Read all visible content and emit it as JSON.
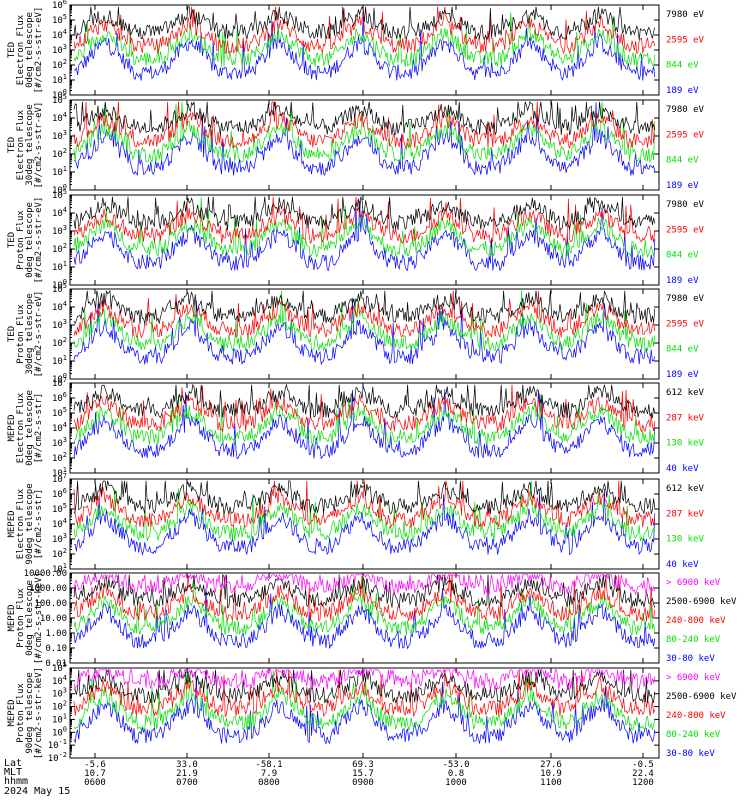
{
  "chart_data": {
    "type": "line",
    "date": "2024 May 15",
    "footer": {
      "labels": [
        "Lat",
        "MLT",
        "hhmm"
      ],
      "lat": [
        "-5.6",
        "33.0",
        "-58.1",
        "69.3",
        "-53.0",
        "27.6",
        "-0.5"
      ],
      "mlt": [
        "10.7",
        "21.9",
        "7.9",
        "15.7",
        "0.8",
        "10.9",
        "22.4"
      ],
      "hhmm": [
        "0600",
        "0700",
        "0800",
        "0900",
        "1000",
        "1100",
        "1200"
      ]
    },
    "colors": {
      "black": "#000000",
      "red": "#ff0000",
      "green": "#00e000",
      "blue": "#0000ff",
      "magenta": "#ff00ff"
    },
    "panels": [
      {
        "ylabel": [
          "TED",
          "Electron Flux",
          "0deg telescope",
          "[#/cm2-s-str-eV]"
        ],
        "ymin_exp": 0,
        "ymax_exp": 6,
        "tick_exps": [
          0,
          2,
          4,
          6
        ],
        "legend": [
          {
            "text": "7980 eV",
            "color": "black"
          },
          {
            "text": "2595 eV",
            "color": "red"
          },
          {
            "text": "844 eV",
            "color": "green"
          },
          {
            "text": "189 eV",
            "color": "blue"
          }
        ]
      },
      {
        "ylabel": [
          "TED",
          "Electron Flux",
          "30deg telescope",
          "[#/cm2-s-str-eV]"
        ],
        "ymin_exp": 0,
        "ymax_exp": 5,
        "tick_exps": [
          0,
          1,
          2,
          3,
          4,
          5
        ],
        "legend": [
          {
            "text": "7980 eV",
            "color": "black"
          },
          {
            "text": "2595 eV",
            "color": "red"
          },
          {
            "text": "844 eV",
            "color": "green"
          },
          {
            "text": "189 eV",
            "color": "blue"
          }
        ]
      },
      {
        "ylabel": [
          "TED",
          "Proton Flux",
          "0deg telescope",
          "[#/cm2-s-str-eV]"
        ],
        "ymin_exp": 0,
        "ymax_exp": 5,
        "tick_exps": [
          0,
          1,
          2,
          3,
          4,
          5
        ],
        "legend": [
          {
            "text": "7980 eV",
            "color": "black"
          },
          {
            "text": "2595 eV",
            "color": "red"
          },
          {
            "text": "844 eV",
            "color": "green"
          },
          {
            "text": "189 eV",
            "color": "blue"
          }
        ]
      },
      {
        "ylabel": [
          "TED",
          "Proton Flux",
          "30deg telescope",
          "[#/cm2-s-str-eV]"
        ],
        "ymin_exp": 0,
        "ymax_exp": 5,
        "tick_exps": [
          0,
          1,
          2,
          3,
          4,
          5
        ],
        "legend": [
          {
            "text": "7980 eV",
            "color": "black"
          },
          {
            "text": "2595 eV",
            "color": "red"
          },
          {
            "text": "844 eV",
            "color": "green"
          },
          {
            "text": "189 eV",
            "color": "blue"
          }
        ]
      },
      {
        "ylabel": [
          "MEPED",
          "Electron Flux",
          "0deg telescope",
          "[#/cm2-s-str]"
        ],
        "ymin_exp": 1,
        "ymax_exp": 7,
        "tick_exps": [
          1,
          2,
          3,
          4,
          5,
          6,
          7
        ],
        "legend": [
          {
            "text": "612 keV",
            "color": "black"
          },
          {
            "text": "287 keV",
            "color": "red"
          },
          {
            "text": "130 keV",
            "color": "green"
          },
          {
            "text": "40 keV",
            "color": "blue"
          }
        ]
      },
      {
        "ylabel": [
          "MEPED",
          "Electron Flux",
          "90deg telescope",
          "[#/cm2-s-str]"
        ],
        "ymin_exp": 1,
        "ymax_exp": 7,
        "tick_exps": [
          1,
          2,
          3,
          4,
          5,
          6,
          7
        ],
        "legend": [
          {
            "text": "612 keV",
            "color": "black"
          },
          {
            "text": "287 keV",
            "color": "red"
          },
          {
            "text": "130 keV",
            "color": "green"
          },
          {
            "text": "40 keV",
            "color": "blue"
          }
        ]
      },
      {
        "ylabel": [
          "MEPED",
          "Proton Flux",
          "0deg telescope",
          "[#/cm2-s-str-keV]"
        ],
        "ymin_exp": -2,
        "ymax_exp": 4,
        "tick_labels": [
          "0.01",
          "0.10",
          "1.00",
          "10.00",
          "100.00",
          "1000.00",
          "10000.00"
        ],
        "legend": [
          {
            "text": "> 6900 keV",
            "color": "magenta"
          },
          {
            "text": "2500-6900 keV",
            "color": "black"
          },
          {
            "text": "240-800 keV",
            "color": "red"
          },
          {
            "text": "80-240 keV",
            "color": "green"
          },
          {
            "text": "30-80 keV",
            "color": "blue"
          }
        ]
      },
      {
        "ylabel": [
          "MEPED",
          "Proton Flux",
          "90deg telescope",
          "[#/cm2-s-str-keV]"
        ],
        "ymin_exp": -2,
        "ymax_exp": 5,
        "tick_exps": [
          -2,
          -1,
          0,
          1,
          2,
          3,
          4,
          5
        ],
        "legend": [
          {
            "text": "> 6900 keV",
            "color": "magenta"
          },
          {
            "text": "2500-6900 keV",
            "color": "black"
          },
          {
            "text": "240-800 keV",
            "color": "red"
          },
          {
            "text": "80-240 keV",
            "color": "green"
          },
          {
            "text": "30-80 keV",
            "color": "blue"
          }
        ]
      }
    ]
  }
}
